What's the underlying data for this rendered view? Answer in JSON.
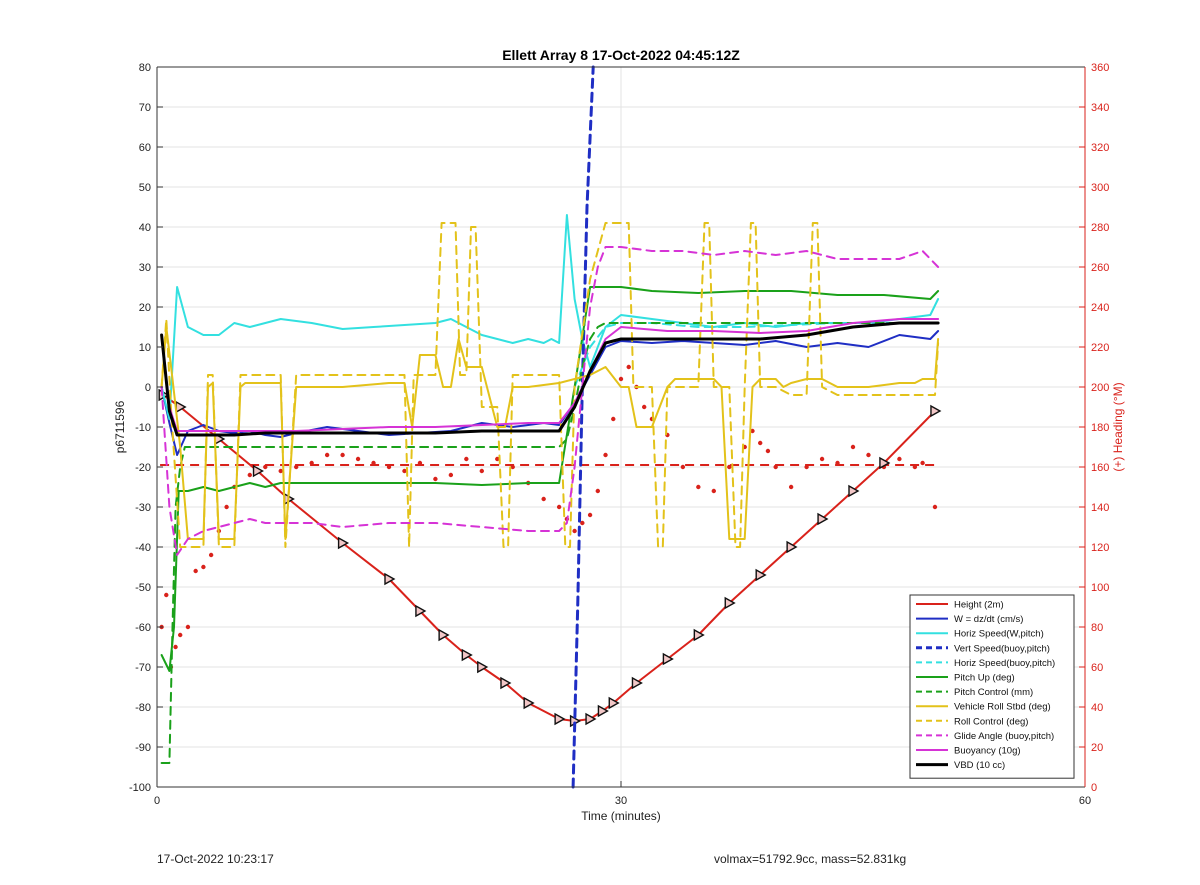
{
  "chart_data": {
    "type": "line",
    "title": "Ellett Array 8 17-Oct-2022 04:45:12Z",
    "xlabel": "Time (minutes)",
    "ylabel": "p6711596",
    "y2label": "(+) Heading (°M)",
    "xlim": [
      0,
      60
    ],
    "ylim": [
      -100,
      80
    ],
    "y2lim": [
      0,
      360
    ],
    "xticks": [
      "0",
      "30",
      "60"
    ],
    "yticks": [
      "-100",
      "-90",
      "-80",
      "-70",
      "-60",
      "-50",
      "-40",
      "-30",
      "-20",
      "-10",
      "0",
      "10",
      "20",
      "30",
      "40",
      "50",
      "60",
      "70",
      "80"
    ],
    "y2ticks": [
      "0",
      "20",
      "40",
      "60",
      "80",
      "100",
      "120",
      "140",
      "160",
      "180",
      "200",
      "220",
      "240",
      "260",
      "280",
      "300",
      "320",
      "340",
      "360"
    ],
    "grid": true,
    "legend_position": "bottom-right",
    "colors": {
      "red": "#d9221b",
      "blue": "#1f2ec4",
      "cyan": "#33e0e0",
      "green": "#1aa11a",
      "yellow": "#e3c21a",
      "magenta": "#d633d6",
      "black": "#000000",
      "axis2": "#d9221b"
    },
    "series": [
      {
        "name": "Height (2m)",
        "color": "#d9221b",
        "style": "solid",
        "width": 2,
        "markers": true,
        "x": [
          0.4,
          1.5,
          4,
          6.5,
          8.5,
          12,
          15,
          17,
          18.5,
          20,
          21,
          22.5,
          24,
          26,
          27,
          28,
          28.8,
          29.5,
          31,
          33,
          35,
          37,
          39,
          41,
          43,
          45,
          47,
          50.3
        ],
        "y": [
          -2,
          -5,
          -13,
          -21,
          -28,
          -39,
          -48,
          -56,
          -62,
          -67,
          -70,
          -74,
          -79,
          -83,
          -83.5,
          -83,
          -81,
          -79,
          -74,
          -68,
          -62,
          -54,
          -47,
          -40,
          -33,
          -26,
          -19,
          -6
        ]
      },
      {
        "name": "W = dz/dt (cm/s)",
        "color": "#1f2ec4",
        "style": "solid",
        "width": 2,
        "x": [
          0.3,
          0.8,
          1.3,
          2,
          3,
          4,
          5,
          6,
          7,
          8,
          9,
          11,
          13,
          15,
          17,
          19,
          21,
          23,
          25,
          26,
          27,
          28,
          29,
          30,
          32,
          34,
          36,
          38,
          40,
          42,
          44,
          46,
          48,
          50,
          50.5
        ],
        "y": [
          0,
          -9,
          -17,
          -11,
          -9.5,
          -11,
          -11.5,
          -11,
          -12,
          -12.5,
          -11.5,
          -10,
          -11,
          -12,
          -11.5,
          -11,
          -9,
          -10,
          -9,
          -9.5,
          -4,
          3,
          10,
          11.5,
          11,
          11.5,
          11,
          10.5,
          11.5,
          10,
          11,
          10,
          13,
          12,
          14
        ]
      },
      {
        "name": "Horiz Speed(W,pitch)",
        "color": "#33e0e0",
        "style": "solid",
        "width": 2,
        "x": [
          0.3,
          0.8,
          1.3,
          2,
          3,
          4,
          5,
          6,
          7,
          8,
          10,
          12,
          14,
          16,
          18,
          19,
          20,
          21,
          22,
          23,
          24,
          25,
          25.5,
          26,
          26.5,
          27,
          27.5,
          28,
          29,
          30,
          32,
          34,
          36,
          38,
          40,
          42,
          44,
          46,
          48,
          50,
          50.5
        ],
        "y": [
          0,
          -8,
          25,
          15,
          13,
          13,
          16,
          15,
          16,
          17,
          16,
          14.5,
          15,
          15.5,
          16,
          17,
          15,
          13,
          12,
          11,
          12,
          11,
          12,
          11,
          43,
          22,
          12,
          5,
          15,
          18,
          17,
          16,
          15,
          16,
          15,
          16,
          16,
          16,
          17,
          18,
          22
        ]
      },
      {
        "name": "Vert Speed(buoy,pitch)",
        "color": "#1f2ec4",
        "style": "dashed",
        "width": 3,
        "x": [
          26.9,
          27.2,
          27.5,
          27.8,
          28.2
        ],
        "y": [
          -100,
          -55,
          0,
          45,
          80
        ]
      },
      {
        "name": "Horiz Speed(buoy,pitch)",
        "color": "#33e0e0",
        "style": "dashed",
        "width": 2,
        "x": [
          27,
          28,
          29,
          30,
          32,
          35,
          38,
          41,
          44,
          47,
          50.5
        ],
        "y": [
          0,
          10,
          15,
          16,
          16,
          15,
          15,
          15.5,
          16,
          16,
          16
        ]
      },
      {
        "name": "Pitch Up (deg)",
        "color": "#1aa11a",
        "style": "solid",
        "width": 2,
        "x": [
          0.3,
          0.8,
          1.1,
          1.4,
          2,
          3,
          4,
          5,
          6,
          7,
          8,
          10,
          12,
          15,
          18,
          21,
          24,
          26,
          27,
          28,
          29,
          30,
          32,
          35,
          38,
          41,
          44,
          47,
          50,
          50.5
        ],
        "y": [
          -67,
          -71,
          -60,
          -26,
          -26,
          -25,
          -26,
          -25,
          -24,
          -25,
          -24,
          -24,
          -24,
          -24,
          -24,
          -24.5,
          -24,
          -24,
          0,
          25,
          25,
          25,
          24,
          23.5,
          24,
          24,
          23,
          23,
          22,
          24
        ]
      },
      {
        "name": "Pitch Control (mm)",
        "color": "#1aa11a",
        "style": "dashed",
        "width": 2,
        "x": [
          0.3,
          0.8,
          1.0,
          1.2,
          1.5,
          1.8,
          5,
          10,
          15,
          20,
          25,
          26,
          26.5,
          27,
          27.5,
          28,
          28.5,
          29,
          35,
          40,
          45,
          50.5
        ],
        "y": [
          -94,
          -94,
          -60,
          -30,
          -20,
          -15,
          -15,
          -15,
          -15,
          -15,
          -15,
          -15,
          -13,
          -5,
          5,
          12,
          15,
          16,
          16,
          16,
          16,
          16
        ]
      },
      {
        "name": "Vehicle Roll Stbd (deg)",
        "color": "#e3c21a",
        "style": "solid",
        "width": 2,
        "x": [
          0.3,
          0.6,
          1.0,
          1.5,
          2,
          3,
          3.3,
          3.6,
          4.0,
          5,
          5.4,
          5.7,
          6,
          7,
          8,
          8.3,
          9,
          12,
          15,
          16,
          16.5,
          17,
          18,
          18.5,
          19,
          19.5,
          20,
          21,
          22,
          22.5,
          23,
          24,
          26,
          27,
          28,
          29,
          30,
          30.5,
          31,
          32,
          33,
          33.5,
          34,
          36,
          36.5,
          37,
          38,
          38.5,
          39,
          40,
          40.5,
          41,
          42,
          43,
          44,
          46,
          48,
          49,
          49.5,
          50.3,
          50.5
        ],
        "y": [
          0,
          15,
          2,
          -15,
          -38,
          -38,
          0,
          1,
          -38,
          -38,
          0,
          1,
          1,
          1,
          1,
          -38,
          0,
          0,
          1,
          1,
          -10,
          8,
          8,
          0,
          0,
          12,
          5,
          5,
          -10,
          -10,
          0,
          0,
          1,
          2,
          3,
          5,
          0,
          0,
          -10,
          -10,
          0,
          2,
          2,
          2,
          0,
          -38,
          -38,
          0,
          2,
          2,
          0,
          1,
          2,
          2,
          0,
          0,
          1,
          1,
          2,
          2,
          12
        ]
      },
      {
        "name": "Roll Control (deg)",
        "color": "#e3c21a",
        "style": "dashed",
        "width": 2,
        "x": [
          0.3,
          0.6,
          0.9,
          1.5,
          2,
          3,
          3.3,
          3.6,
          4,
          5,
          5.4,
          5.7,
          6,
          8,
          8.3,
          9,
          12,
          15,
          16,
          16.3,
          16.6,
          17,
          18,
          18.4,
          18.7,
          19.3,
          19.6,
          20,
          20.3,
          20.6,
          21,
          22,
          22.4,
          22.7,
          23,
          24,
          25,
          26,
          26.4,
          26.7,
          27,
          28,
          29,
          30,
          30.5,
          30.8,
          31,
          32,
          32.4,
          32.7,
          33,
          34,
          35,
          35.4,
          35.7,
          36,
          37,
          37.4,
          37.7,
          38,
          38.4,
          38.7,
          39,
          40,
          41,
          42,
          42.4,
          42.7,
          43,
          44,
          46,
          48,
          50.3,
          50.5
        ],
        "y": [
          0,
          17,
          -5,
          -40,
          -40,
          -40,
          3,
          3,
          -40,
          -40,
          3,
          3,
          3,
          3,
          -40,
          3,
          3,
          3,
          3,
          -40,
          3,
          3,
          3,
          41,
          41,
          41,
          3,
          3,
          40,
          40,
          -5,
          -5,
          -40,
          -40,
          3,
          3,
          3,
          3,
          -40,
          -40,
          0,
          27,
          41,
          41,
          41,
          0,
          0,
          0,
          -40,
          -40,
          0,
          0,
          0,
          41,
          41,
          0,
          0,
          -40,
          -40,
          0,
          41,
          41,
          0,
          0,
          -2,
          -2,
          41,
          41,
          0,
          -2,
          -2,
          -2,
          -2,
          11
        ]
      },
      {
        "name": "Glide Angle (buoy,pitch)",
        "color": "#d633d6",
        "style": "dashed",
        "width": 2,
        "x": [
          0.3,
          0.8,
          1.3,
          2,
          3,
          4,
          5,
          6,
          7,
          8,
          10,
          12,
          15,
          18,
          21,
          24,
          26,
          26.5,
          27,
          27.5,
          28,
          28.5,
          29,
          30,
          32,
          34,
          36,
          38,
          40,
          42,
          44,
          46,
          48,
          49.5,
          50.5
        ],
        "y": [
          0,
          -30,
          -42,
          -38,
          -36,
          -35,
          -34,
          -33,
          -34,
          -34,
          -34,
          -35,
          -34,
          -34,
          -35,
          -36,
          -36,
          -34,
          -20,
          0,
          20,
          30,
          35,
          35,
          34,
          34,
          33,
          34,
          33,
          34,
          32,
          32,
          32,
          34,
          30
        ]
      },
      {
        "name": "Buoyancy (10g)",
        "color": "#d633d6",
        "style": "solid",
        "width": 2,
        "x": [
          0.3,
          0.8,
          1.3,
          3,
          5,
          7,
          9,
          12,
          15,
          18,
          21,
          24,
          26,
          27,
          28,
          29,
          30,
          33,
          36,
          39,
          42,
          45,
          48,
          50.5
        ],
        "y": [
          13,
          -5,
          -11,
          -11,
          -11,
          -11,
          -11,
          -10.5,
          -10,
          -10,
          -9.5,
          -9,
          -9,
          -4,
          4,
          12,
          15,
          14,
          14,
          13.5,
          14,
          16,
          17,
          17
        ]
      },
      {
        "name": "VBD (10 cc)",
        "color": "#000000",
        "style": "solid",
        "width": 3,
        "x": [
          0.3,
          0.8,
          1.3,
          3,
          5,
          7,
          9,
          12,
          15,
          18,
          21,
          24,
          26,
          27,
          28,
          29,
          30,
          33,
          36,
          39,
          42,
          45,
          48,
          50.5
        ],
        "y": [
          13,
          -6,
          -12,
          -12,
          -12,
          -11.5,
          -11.5,
          -11.5,
          -11.5,
          -11.5,
          -11,
          -11,
          -11,
          -5,
          4,
          11,
          12,
          12,
          12,
          12,
          13,
          15,
          16,
          16
        ]
      }
    ],
    "heading_scatter": {
      "color": "#d9221b",
      "heading_mean_deg": 161,
      "x": [
        0.3,
        0.6,
        0.9,
        1.2,
        1.5,
        2,
        2.5,
        3,
        3.5,
        4,
        4.5,
        5,
        6,
        7,
        8,
        9,
        10,
        11,
        12,
        13,
        14,
        15,
        16,
        17,
        18,
        19,
        20,
        21,
        22,
        23,
        24,
        25,
        26,
        26.5,
        27,
        27.5,
        28,
        28.5,
        29,
        29.5,
        30,
        30.5,
        31,
        31.5,
        32,
        33,
        34,
        35,
        36,
        37,
        38,
        38.5,
        39,
        39.5,
        40,
        41,
        42,
        43,
        44,
        45,
        46,
        47,
        48,
        49,
        49.5,
        50.3
      ],
      "y": [
        80,
        96,
        60,
        70,
        76,
        80,
        108,
        110,
        116,
        128,
        140,
        150,
        156,
        160,
        158,
        160,
        162,
        166,
        166,
        164,
        162,
        160,
        158,
        162,
        154,
        156,
        164,
        158,
        164,
        160,
        152,
        144,
        140,
        134,
        128,
        132,
        136,
        148,
        166,
        184,
        204,
        210,
        200,
        190,
        184,
        176,
        160,
        150,
        148,
        160,
        170,
        178,
        172,
        168,
        160,
        150,
        160,
        164,
        162,
        170,
        166,
        160,
        164,
        160,
        162,
        140
      ]
    },
    "heading_mean_line": {
      "color": "#d9221b",
      "style": "dashed",
      "heading_deg": 161
    }
  },
  "footer": {
    "left": "17-Oct-2022 10:23:17",
    "right": "volmax=51792.9cc, mass=52.831kg"
  }
}
